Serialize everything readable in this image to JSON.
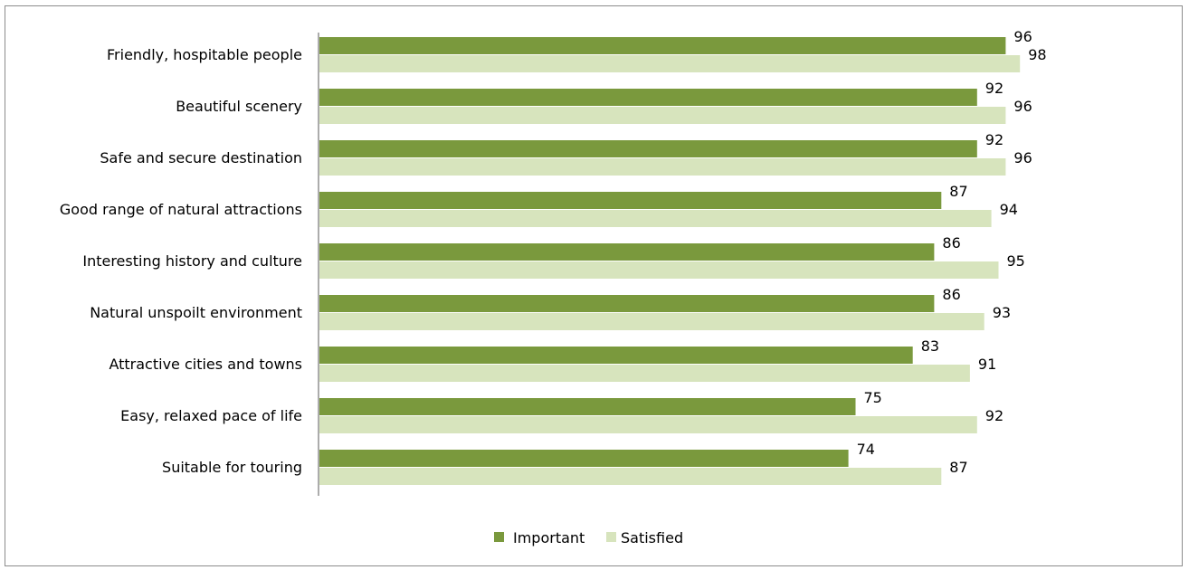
{
  "colors": {
    "important": "#7a993d",
    "satisfied": "#d7e4bd",
    "axis": "#595959"
  },
  "chart_data": {
    "type": "bar",
    "orientation": "horizontal",
    "title": "",
    "xlabel": "",
    "ylabel": "",
    "xlim": [
      0,
      100
    ],
    "grid": false,
    "legend_position": "bottom",
    "categories": [
      "Friendly, hospitable people",
      "Beautiful scenery",
      "Safe and secure destination",
      "Good range of natural attractions",
      "Interesting history and culture",
      "Natural unspoilt environment",
      "Attractive cities and towns",
      "Easy, relaxed pace of life",
      "Suitable for touring"
    ],
    "series": [
      {
        "name": "Important",
        "values": [
          96,
          92,
          92,
          87,
          86,
          86,
          83,
          75,
          74
        ]
      },
      {
        "name": "Satisfied",
        "values": [
          98,
          96,
          96,
          94,
          95,
          93,
          91,
          92,
          87
        ]
      }
    ]
  }
}
